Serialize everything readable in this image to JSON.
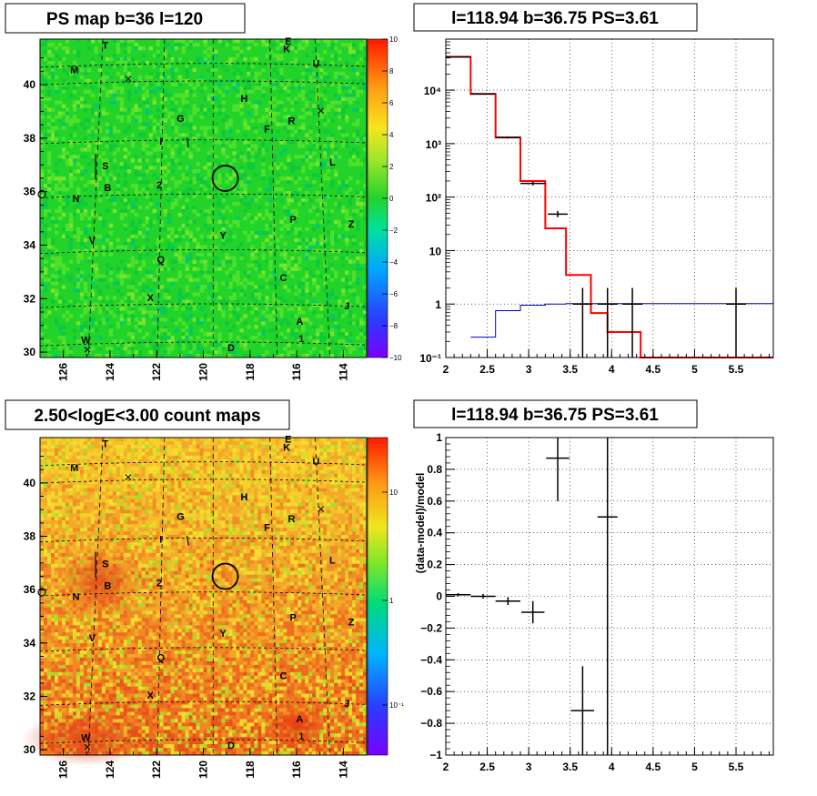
{
  "panels": {
    "top_left": {
      "title": "PS map b=36 l=120"
    },
    "top_right": {
      "title": "l=118.94 b=36.75 PS=3.61"
    },
    "bottom_left": {
      "title": "2.50<logE<3.00 count maps"
    },
    "bottom_right": {
      "title": "l=118.94 b=36.75 PS=3.61"
    }
  },
  "source_labels": [
    "T",
    "E",
    "K",
    "M",
    "U",
    "H",
    "G",
    "R",
    "F",
    "L",
    "S",
    "B",
    "2",
    "N",
    "P",
    "Z",
    "V",
    "Y",
    "Q",
    "C",
    "X",
    "J",
    "A",
    "1",
    "W",
    "D",
    "I"
  ],
  "colors": {
    "background": "#ffffff",
    "map_green": "#22d42a",
    "data": "#000000",
    "model": "#ff0000",
    "background_model": "#0000cc"
  },
  "chart_data": [
    {
      "type": "heatmap",
      "title": "PS map b=36 l=120",
      "xlabel": "",
      "ylabel": "",
      "xlim": [
        127,
        113
      ],
      "ylim": [
        29.8,
        41.7
      ],
      "x_ticks": [
        "126",
        "124",
        "122",
        "120",
        "118",
        "116",
        "114"
      ],
      "y_ticks": [
        "30",
        "32",
        "34",
        "36",
        "38",
        "40"
      ],
      "colorbar": {
        "range": [
          -10,
          10
        ],
        "ticks": [
          "10",
          "8",
          "6",
          "4",
          "2",
          "0",
          "−2",
          "−4",
          "−6",
          "−8",
          "−10"
        ]
      },
      "dominant_value": 0
    },
    {
      "type": "line",
      "title": "l=118.94 b=36.75 PS=3.61",
      "xlabel": "",
      "ylabel": "",
      "xlim": [
        2,
        5.95
      ],
      "ylim": [
        0.1,
        90000
      ],
      "yscale": "log",
      "x_ticks": [
        "2",
        "2.5",
        "3",
        "3.5",
        "4",
        "4.5",
        "5",
        "5.5"
      ],
      "y_ticks": [
        "10⁻¹",
        "1",
        "10",
        "10²",
        "10³",
        "10⁴"
      ],
      "series": [
        {
          "role": "model",
          "color": "#ff0000",
          "bins": [
            [
              2.0,
              2.3,
              42000
            ],
            [
              2.3,
              2.6,
              8500
            ],
            [
              2.6,
              2.9,
              1300
            ],
            [
              2.9,
              3.2,
              200
            ],
            [
              3.2,
              3.45,
              26
            ],
            [
              3.45,
              3.75,
              3.5
            ],
            [
              3.75,
              3.95,
              0.68
            ],
            [
              3.95,
              4.35,
              0.3
            ],
            [
              4.35,
              5.95,
              0.1
            ]
          ]
        },
        {
          "role": "background",
          "color": "#0000cc",
          "bins": [
            [
              2.3,
              2.6,
              0.24
            ],
            [
              2.6,
              2.9,
              0.75
            ],
            [
              2.9,
              3.2,
              0.95
            ],
            [
              3.2,
              3.45,
              1.0
            ],
            [
              3.45,
              5.95,
              1.02
            ]
          ]
        },
        {
          "role": "data",
          "color": "#000000",
          "points": [
            {
              "x": 2.15,
              "xerr": 0.15,
              "y": 42000,
              "ylo": 41500,
              "yhi": 42500
            },
            {
              "x": 2.45,
              "xerr": 0.15,
              "y": 8500,
              "ylo": 8350,
              "yhi": 8650
            },
            {
              "x": 2.75,
              "xerr": 0.15,
              "y": 1300,
              "ylo": 1250,
              "yhi": 1350
            },
            {
              "x": 3.05,
              "xerr": 0.15,
              "y": 180,
              "ylo": 165,
              "yhi": 195
            },
            {
              "x": 3.35,
              "xerr": 0.12,
              "y": 48,
              "ylo": 42,
              "yhi": 55
            },
            {
              "x": 3.65,
              "xerr": 0.12,
              "y": 1.0,
              "ylo": 0.1,
              "yhi": 2.0
            },
            {
              "x": 3.95,
              "xerr": 0.12,
              "y": 1.0,
              "ylo": 0.1,
              "yhi": 2.0
            },
            {
              "x": 4.25,
              "xerr": 0.12,
              "y": 1.0,
              "ylo": 0.1,
              "yhi": 2.0
            },
            {
              "x": 5.5,
              "xerr": 0.12,
              "y": 1.0,
              "ylo": 0.1,
              "yhi": 2.0
            }
          ]
        }
      ]
    },
    {
      "type": "heatmap",
      "title": "2.50<logE<3.00 count maps",
      "xlabel": "",
      "ylabel": "",
      "xlim": [
        127,
        113
      ],
      "ylim": [
        29.8,
        41.7
      ],
      "x_ticks": [
        "126",
        "124",
        "122",
        "120",
        "118",
        "116",
        "114"
      ],
      "y_ticks": [
        "30",
        "32",
        "34",
        "36",
        "38",
        "40"
      ],
      "colorbar": {
        "scale": "log",
        "ticks": [
          "10",
          "1",
          "10⁻¹"
        ]
      }
    },
    {
      "type": "scatter",
      "title": "l=118.94 b=36.75 PS=3.61",
      "xlabel": "",
      "ylabel": "(data-model)/model",
      "xlim": [
        2,
        5.95
      ],
      "ylim": [
        -1,
        1
      ],
      "x_ticks": [
        "2",
        "2.5",
        "3",
        "3.5",
        "4",
        "4.5",
        "5",
        "5.5"
      ],
      "y_ticks": [
        "1",
        "0.8",
        "0.6",
        "0.4",
        "0.2",
        "0",
        "−0.2",
        "−0.4",
        "−0.6",
        "−0.8",
        "−1"
      ],
      "points": [
        {
          "x": 2.15,
          "xerr": 0.15,
          "y": 0.01,
          "ylo": 0.0,
          "yhi": 0.02
        },
        {
          "x": 2.45,
          "xerr": 0.15,
          "y": 0.0,
          "ylo": -0.015,
          "yhi": 0.015
        },
        {
          "x": 2.75,
          "xerr": 0.15,
          "y": -0.03,
          "ylo": -0.055,
          "yhi": -0.005
        },
        {
          "x": 3.05,
          "xerr": 0.14,
          "y": -0.1,
          "ylo": -0.17,
          "yhi": -0.03
        },
        {
          "x": 3.35,
          "xerr": 0.14,
          "y": 0.87,
          "ylo": 0.6,
          "yhi": 1.0
        },
        {
          "x": 3.65,
          "xerr": 0.14,
          "y": -0.72,
          "ylo": -1.0,
          "yhi": -0.44
        },
        {
          "x": 3.95,
          "xerr": 0.12,
          "y": 0.5,
          "ylo": -1.0,
          "yhi": 1.0
        }
      ]
    }
  ]
}
